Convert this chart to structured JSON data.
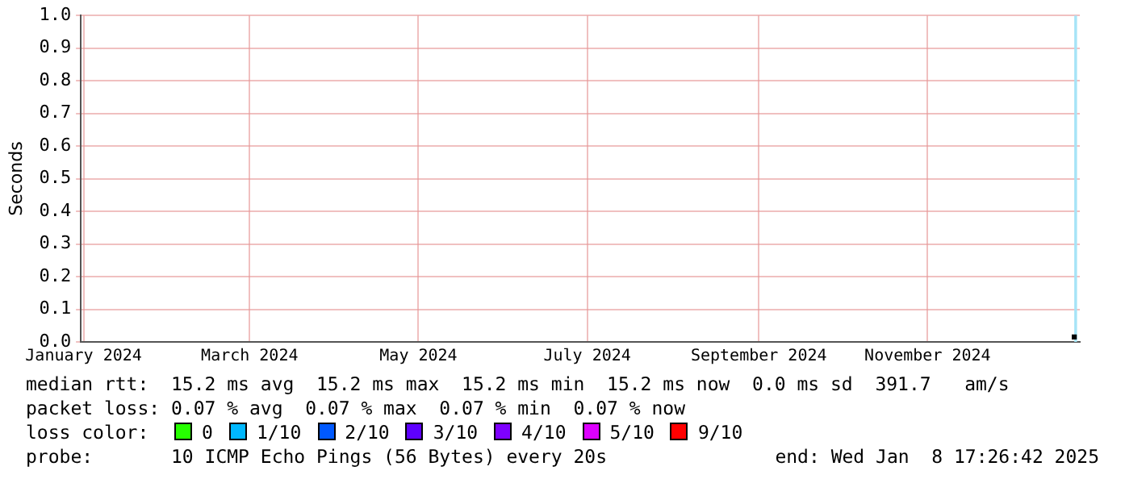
{
  "chart_data": {
    "type": "scatter",
    "ylabel": "Seconds",
    "xlim": [
      "2023-12-31",
      "2024-12-26"
    ],
    "xticks": [
      {
        "value": "2024-01-01",
        "label": "January 2024"
      },
      {
        "value": "2024-03-01",
        "label": "March 2024"
      },
      {
        "value": "2024-05-01",
        "label": "May 2024"
      },
      {
        "value": "2024-07-01",
        "label": "July 2024"
      },
      {
        "value": "2024-09-01",
        "label": "September 2024"
      },
      {
        "value": "2024-11-01",
        "label": "November 2024"
      }
    ],
    "ylim": [
      0,
      1
    ],
    "yticks": [
      {
        "value": 0,
        "label": "0.0"
      },
      {
        "value": 0.1,
        "label": "0.1"
      },
      {
        "value": 0.2,
        "label": "0.2"
      },
      {
        "value": 0.3,
        "label": "0.3"
      },
      {
        "value": 0.4,
        "label": "0.4"
      },
      {
        "value": 0.5,
        "label": "0.5"
      },
      {
        "value": 0.6,
        "label": "0.6"
      },
      {
        "value": 0.7,
        "label": "0.7"
      },
      {
        "value": 0.8,
        "label": "0.8"
      },
      {
        "value": 0.9,
        "label": "0.9"
      },
      {
        "value": 1,
        "label": "1.0"
      }
    ],
    "grid": true,
    "legend": false,
    "marker": "square",
    "series": [
      {
        "color": "#000000",
        "x": [
          "2024-12-24"
        ],
        "values": [
          0.015
        ]
      }
    ],
    "bands": [
      {
        "axis": "x",
        "from": "2024-12-24",
        "to": "2024-12-25",
        "label": null,
        "color": "#a6e4f7"
      }
    ],
    "annotations": [
      "median rtt:  15.2 ms avg  15.2 ms max  15.2 ms min  15.2 ms now  0.0 ms sd  391.7   am/s",
      "packet loss: 0.07 % avg  0.07 % max  0.07 % min  0.07 % now",
      "loss color:",
      "0",
      "1/10",
      "2/10",
      "3/10",
      "4/10",
      "5/10",
      "9/10",
      "probe:       10 ICMP Echo Pings (56 Bytes) every 20s",
      "end: Wed Jan  8 17:26:42 2025"
    ]
  }
}
